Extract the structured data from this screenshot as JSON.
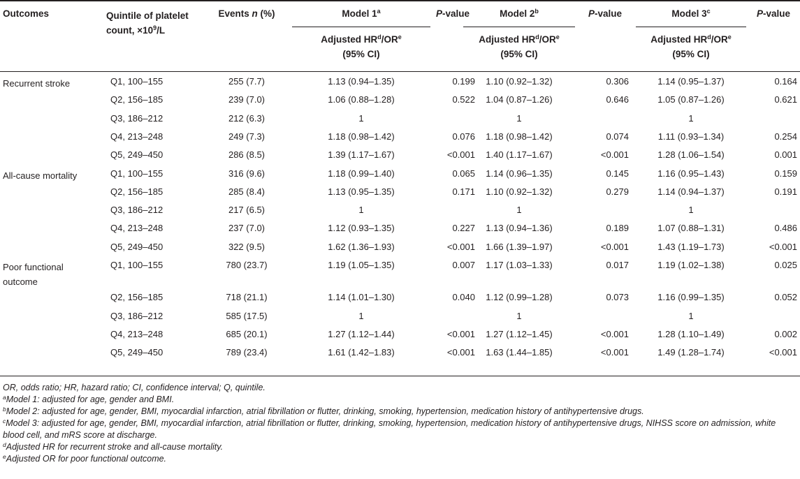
{
  "headers": {
    "outcomes": "Outcomes",
    "quintile_line1": "Quintile of platelet",
    "quintile_line2_pre": "count, ×10",
    "quintile_sup": "9",
    "quintile_line2_post": "/L",
    "events_pre": "Events ",
    "events_n": "n",
    "events_post": " (%)",
    "model1": "Model 1",
    "model1_sup": "a",
    "model2": "Model 2",
    "model2_sup": "b",
    "model3": "Model 3",
    "model3_sup": "c",
    "p_italic": "P",
    "p_rest": "-value",
    "adj_pre": "Adjusted HR",
    "adj_sup_d": "d",
    "adj_mid": "/OR",
    "adj_sup_e": "e",
    "ci": "(95% CI)"
  },
  "rows": [
    {
      "outcome": "Recurrent stroke",
      "quintile": "Q1, 100–155",
      "events": "255 (7.7)",
      "m1": "1.13 (0.94–1.35)",
      "p1": "0.199",
      "m2": "1.10 (0.92–1.32)",
      "p2": "0.306",
      "m3": "1.14 (0.95–1.37)",
      "p3": "0.164"
    },
    {
      "outcome": "",
      "quintile": "Q2, 156–185",
      "events": "239 (7.0)",
      "m1": "1.06 (0.88–1.28)",
      "p1": "0.522",
      "m2": "1.04 (0.87–1.26)",
      "p2": "0.646",
      "m3": "1.05 (0.87–1.26)",
      "p3": "0.621"
    },
    {
      "outcome": "",
      "quintile": "Q3, 186–212",
      "events": "212 (6.3)",
      "m1": "1",
      "p1": "",
      "m2": "1",
      "p2": "",
      "m3": "1",
      "p3": ""
    },
    {
      "outcome": "",
      "quintile": "Q4, 213–248",
      "events": "249 (7.3)",
      "m1": "1.18 (0.98–1.42)",
      "p1": "0.076",
      "m2": "1.18 (0.98–1.42)",
      "p2": "0.074",
      "m3": "1.11 (0.93–1.34)",
      "p3": "0.254"
    },
    {
      "outcome": "",
      "quintile": "Q5, 249–450",
      "events": "286 (8.5)",
      "m1": "1.39 (1.17–1.67)",
      "p1": "<0.001",
      "m2": "1.40 (1.17–1.67)",
      "p2": "<0.001",
      "m3": "1.28 (1.06–1.54)",
      "p3": "0.001"
    },
    {
      "outcome": "All-cause mortality",
      "quintile": "Q1, 100–155",
      "events": "316 (9.6)",
      "m1": "1.18 (0.99–1.40)",
      "p1": "0.065",
      "m2": "1.14 (0.96–1.35)",
      "p2": "0.145",
      "m3": "1.16 (0.95–1.43)",
      "p3": "0.159"
    },
    {
      "outcome": "",
      "quintile": "Q2, 156–185",
      "events": "285 (8.4)",
      "m1": "1.13 (0.95–1.35)",
      "p1": "0.171",
      "m2": "1.10 (0.92–1.32)",
      "p2": "0.279",
      "m3": "1.14 (0.94–1.37)",
      "p3": "0.191"
    },
    {
      "outcome": "",
      "quintile": "Q3, 186–212",
      "events": "217 (6.5)",
      "m1": "1",
      "p1": "",
      "m2": "1",
      "p2": "",
      "m3": "1",
      "p3": ""
    },
    {
      "outcome": "",
      "quintile": "Q4, 213–248",
      "events": "237 (7.0)",
      "m1": "1.12 (0.93–1.35)",
      "p1": "0.227",
      "m2": "1.13 (0.94–1.36)",
      "p2": "0.189",
      "m3": "1.07 (0.88–1.31)",
      "p3": "0.486"
    },
    {
      "outcome": "",
      "quintile": "Q5, 249–450",
      "events": "322 (9.5)",
      "m1": "1.62 (1.36–1.93)",
      "p1": "<0.001",
      "m2": "1.66 (1.39–1.97)",
      "p2": "<0.001",
      "m3": "1.43 (1.19–1.73)",
      "p3": "<0.001"
    },
    {
      "outcome": "Poor functional outcome",
      "quintile": "Q1, 100–155",
      "events": "780 (23.7)",
      "m1": "1.19 (1.05–1.35)",
      "p1": "0.007",
      "m2": "1.17 (1.03–1.33)",
      "p2": "0.017",
      "m3": "1.19 (1.02–1.38)",
      "p3": "0.025"
    },
    {
      "outcome": "",
      "quintile": "Q2, 156–185",
      "events": "718 (21.1)",
      "m1": "1.14 (1.01–1.30)",
      "p1": "0.040",
      "m2": "1.12 (0.99–1.28)",
      "p2": "0.073",
      "m3": "1.16 (0.99–1.35)",
      "p3": "0.052"
    },
    {
      "outcome": "",
      "quintile": "Q3, 186–212",
      "events": "585 (17.5)",
      "m1": "1",
      "p1": "",
      "m2": "1",
      "p2": "",
      "m3": "1",
      "p3": ""
    },
    {
      "outcome": "",
      "quintile": "Q4, 213–248",
      "events": "685 (20.1)",
      "m1": "1.27 (1.12–1.44)",
      "p1": "<0.001",
      "m2": "1.27 (1.12–1.45)",
      "p2": "<0.001",
      "m3": "1.28 (1.10–1.49)",
      "p3": "0.002"
    },
    {
      "outcome": "",
      "quintile": "Q5, 249–450",
      "events": "789 (23.4)",
      "m1": "1.61 (1.42–1.83)",
      "p1": "<0.001",
      "m2": "1.63 (1.44–1.85)",
      "p2": "<0.001",
      "m3": "1.49 (1.28–1.74)",
      "p3": "<0.001"
    }
  ],
  "footnotes": {
    "abbrev": "OR, odds ratio; HR, hazard ratio; CI, confidence interval; Q, quintile.",
    "a_mark": "a",
    "a_text": "Model 1: adjusted for age, gender and BMI.",
    "b_mark": "b",
    "b_text": "Model 2: adjusted for age, gender, BMI, myocardial infarction, atrial fibrillation or flutter, drinking, smoking, hypertension, medication history of antihypertensive drugs.",
    "c_mark": "c",
    "c_text": "Model 3: adjusted for age, gender, BMI, myocardial infarction, atrial fibrillation or flutter, drinking, smoking, hypertension, medication history of antihypertensive drugs, NIHSS score on admission, white blood cell, and mRS score at discharge.",
    "d_mark": "d",
    "d_text": "Adjusted HR for recurrent stroke and all-cause mortality.",
    "e_mark": "e",
    "e_text": "Adjusted OR for poor functional outcome."
  }
}
